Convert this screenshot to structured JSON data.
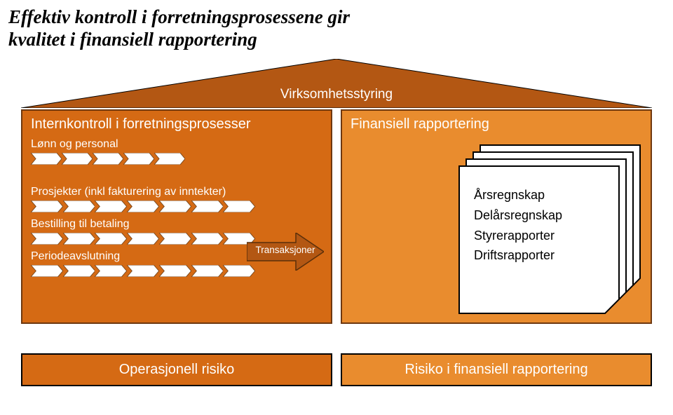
{
  "title_line1": "Effektiv kontroll i forretningsprosessene gir",
  "title_line2": "kvalitet i finansiell rapportering",
  "triangle": {
    "label": "Virksomhetsstyring",
    "fill": "#b35713",
    "stroke": "#000000"
  },
  "columns": {
    "left": {
      "header": "Internkontroll i forretningsprosesser",
      "bg": "#d56a14",
      "border": "#6e3810",
      "chevron_fill": "#ffffff",
      "chevron_stroke": "#7a4a20",
      "groups": [
        {
          "label": "Lønn og personal",
          "chevrons": 5,
          "small": true
        },
        {
          "label": "Prosjekter (inkl fakturering av inntekter)",
          "chevrons": 7,
          "small": false
        },
        {
          "label": "Bestilling til betaling",
          "chevrons": 7,
          "small": false
        },
        {
          "label": "Periodeavslutning",
          "chevrons": 7,
          "small": false
        }
      ]
    },
    "right": {
      "header": "Finansiell rapportering",
      "bg": "#e98c2e",
      "border": "#6e3810",
      "reports": [
        "Årsregnskap",
        "Delårsregnskap",
        "Styrerapporter",
        "Driftsrapporter"
      ],
      "stack_offsets": [
        30,
        20,
        10,
        0
      ]
    }
  },
  "arrow": {
    "label": "Transaksjoner",
    "fill": "#b35713",
    "stroke": "#5a2f0a"
  },
  "bottom": {
    "left": {
      "label": "Operasjonell risiko",
      "bg": "#d56a14"
    },
    "right": {
      "label": "Risiko i finansiell rapportering",
      "bg": "#e98c2e"
    }
  }
}
